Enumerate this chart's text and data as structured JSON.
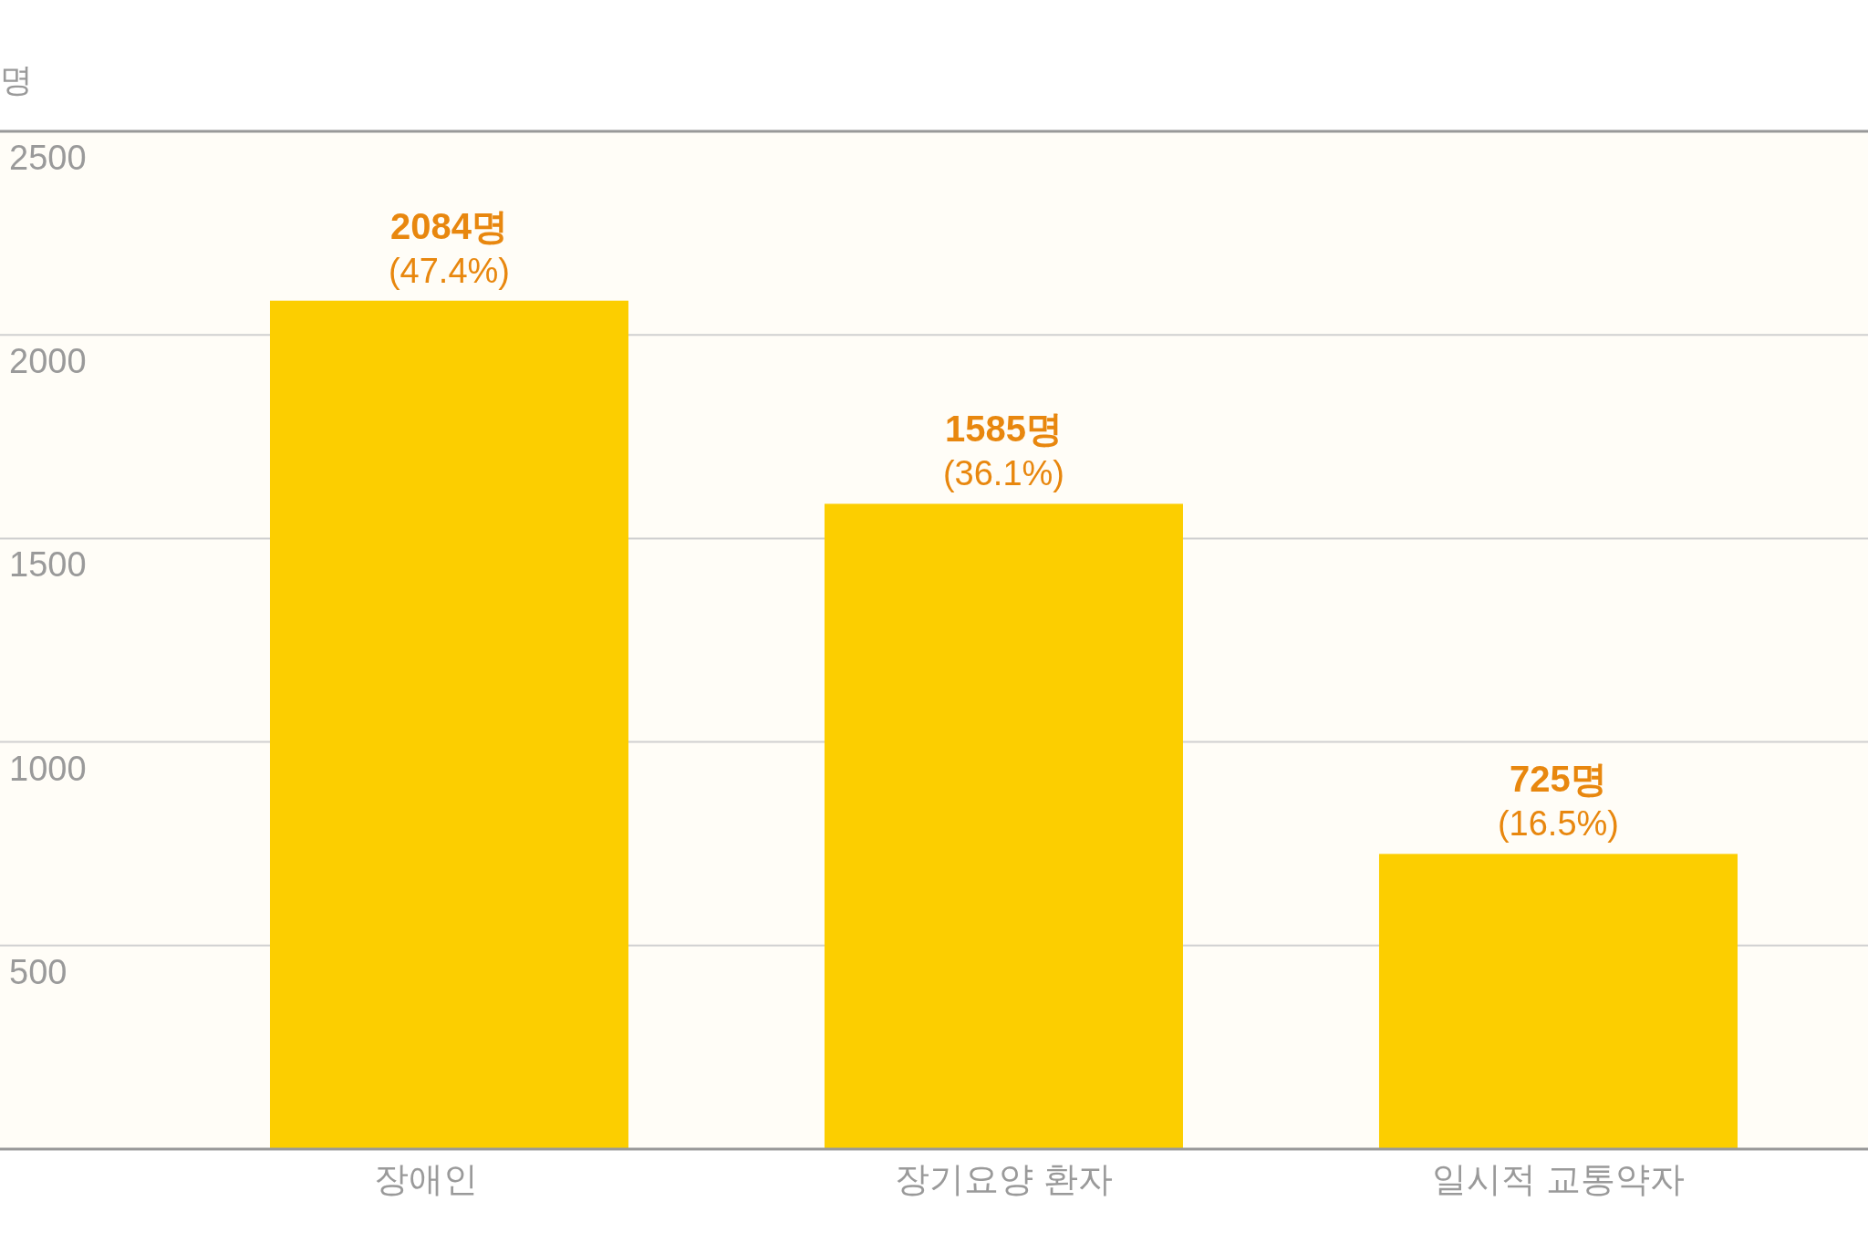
{
  "chart_data": {
    "type": "bar",
    "ylabel": "명",
    "categories": [
      "장애인",
      "장기요양 환자",
      "일시적 교통약자"
    ],
    "values": [
      2084,
      1585,
      725
    ],
    "color": "#fcce00",
    "value_labels": [
      "2084명",
      "1585명",
      "725명"
    ],
    "annotations": [
      {
        "text": "(47.4%)",
        "x": "장애인",
        "y": 2084
      },
      {
        "text": "(36.1%)",
        "x": "장기요양 환자",
        "y": 1585
      },
      {
        "text": "(16.5%)",
        "x": "일시적 교통약자",
        "y": 725
      }
    ],
    "ylim": [
      0,
      2500
    ],
    "yticks": [
      500,
      1000,
      1500,
      2000,
      2500
    ],
    "grid": "y"
  }
}
